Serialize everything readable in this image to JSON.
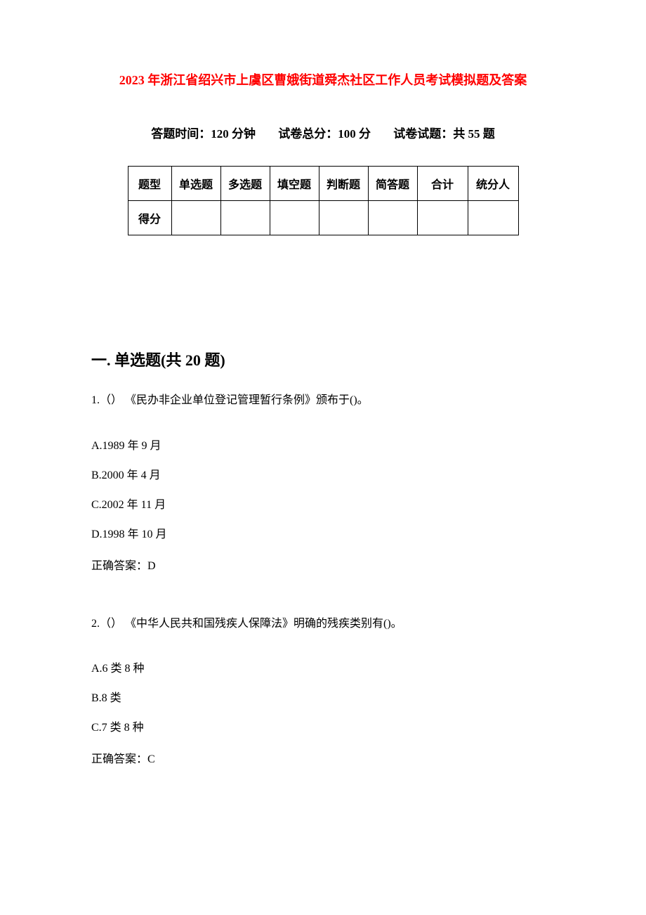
{
  "colors": {
    "title_color": "#ff0000",
    "text_color": "#000000",
    "background_color": "#ffffff",
    "border_color": "#000000"
  },
  "title": "2023 年浙江省绍兴市上虞区曹娥街道舜杰社区工作人员考试模拟题及答案",
  "exam_info": {
    "time_label": "答题时间：120 分钟",
    "total_score_label": "试卷总分：100 分",
    "question_count_label": "试卷试题：共 55 题"
  },
  "score_table": {
    "row1_label": "题型",
    "row2_label": "得分",
    "columns": [
      "单选题",
      "多选题",
      "填空题",
      "判断题",
      "简答题",
      "合计",
      "统分人"
    ]
  },
  "section_heading": "一. 单选题(共 20 题)",
  "questions": [
    {
      "number": "1.（）",
      "text": "《民办非企业单位登记管理暂行条例》颁布于()。",
      "choices": [
        "A.1989 年 9 月",
        "B.2000 年 4 月",
        "C.2002 年 11 月",
        "D.1998 年 10 月"
      ],
      "answer": "正确答案：D"
    },
    {
      "number": "2.（）",
      "text": "《中华人民共和国残疾人保障法》明确的残疾类别有()。",
      "choices": [
        "A.6 类 8 种",
        "B.8 类",
        "C.7 类 8 种"
      ],
      "answer": "正确答案：C"
    }
  ]
}
